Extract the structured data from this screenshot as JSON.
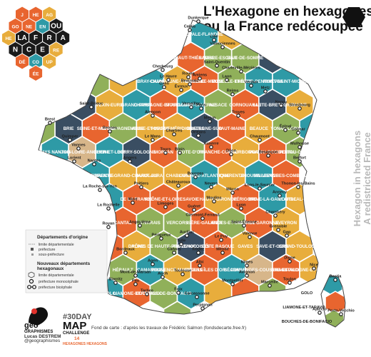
{
  "title": {
    "line1": "L'Hexagone en hexagones",
    "line2": "ou la France redécoupée"
  },
  "side_title": {
    "line1": "Hexagon in hexagons",
    "line2": "A redistricted France"
  },
  "colors": {
    "teal": "#2e9aa6",
    "orange": "#e8652f",
    "yellow": "#e8ad3c",
    "olive": "#90b05a",
    "tan": "#d7b68a",
    "navy": "#3a4e62",
    "border": "#ffffff",
    "title_hex": "#111111"
  },
  "logo": {
    "letters": [
      "J",
      "HE",
      "AG",
      "GO",
      "NE",
      "EN",
      "OU",
      "HE",
      "LA",
      "F",
      "R",
      "A",
      "N",
      "C",
      "E",
      "RE",
      "DÉ",
      "CO",
      "UP",
      "ÉE"
    ]
  },
  "regions": [
    {
      "name": "OPALE-FLANDRE",
      "color": "teal"
    },
    {
      "name": "OPALE-ARTOIS",
      "color": "yellow"
    },
    {
      "name": "HAINAUT-THIÉRACHE",
      "color": "orange"
    },
    {
      "name": "SAMBRE-ESCAUT",
      "color": "olive"
    },
    {
      "name": "BAIE-DE-SOMME",
      "color": "olive"
    },
    {
      "name": "PICARDIE-CENTRALE",
      "color": "navy"
    },
    {
      "name": "ARDENNES",
      "color": "olive"
    },
    {
      "name": "BESSIN-COTENTIN",
      "color": "yellow"
    },
    {
      "name": "BRAY-CAUX",
      "color": "teal"
    },
    {
      "name": "CHAMPAGNE-THÉRACHE",
      "color": "yellow"
    },
    {
      "name": "MOSELLE-MEUSE",
      "color": "orange"
    },
    {
      "name": "MOSELLE-ET-NIED",
      "color": "olive"
    },
    {
      "name": "TRÉGOR-PENTHIÈVRE",
      "color": "teal"
    },
    {
      "name": "MONT-SAINT-MICHEL",
      "color": "teal"
    },
    {
      "name": "ORNE",
      "color": "navy"
    },
    {
      "name": "VEXIN-EURE",
      "color": "yellow"
    },
    {
      "name": "GRAND-PARIS",
      "color": "teal"
    },
    {
      "name": "CHAMPAGNE-ET-ARGONNE",
      "color": "orange"
    },
    {
      "name": "MOSELLE-ET-SAVERNE",
      "color": "teal"
    },
    {
      "name": "ALSACE",
      "color": "olive"
    },
    {
      "name": "CORNOUAILLE",
      "color": "orange"
    },
    {
      "name": "HAUTE-BRETAGNE",
      "color": "navy"
    },
    {
      "name": "MAINE",
      "color": "yellow"
    },
    {
      "name": "EURE-ET-LOIR",
      "color": "olive"
    },
    {
      "name": "BRIE",
      "color": "navy"
    },
    {
      "name": "SEINE-ET-MARNE",
      "color": "orange"
    },
    {
      "name": "CHAMPAGNE-AUBE",
      "color": "olive"
    },
    {
      "name": "MEUSE-ET-MARNE",
      "color": "yellow"
    },
    {
      "name": "VOSGES-MÉRIDIONALES",
      "color": "yellow"
    },
    {
      "name": "BRETAGNE-SUD",
      "color": "navy"
    },
    {
      "name": "HAUT-MAINE",
      "color": "orange"
    },
    {
      "name": "BEAUCE",
      "color": "yellow"
    },
    {
      "name": "YONNE-LOING",
      "color": "olive"
    },
    {
      "name": "HAUTE-SAÔNE",
      "color": "teal"
    },
    {
      "name": "PAYS NANTAIS",
      "color": "teal"
    },
    {
      "name": "ANJOU-LOIRE-ANGEVINE",
      "color": "tan"
    },
    {
      "name": "CHER-ET-LOIR",
      "color": "teal"
    },
    {
      "name": "BERRY-SOLOGNE",
      "color": "navy"
    },
    {
      "name": "MORVAN",
      "color": "orange"
    },
    {
      "name": "CÔTE-D'OR",
      "color": "olive"
    },
    {
      "name": "FRANCHE-COMTÉ",
      "color": "orange"
    },
    {
      "name": "BOURBONNAIS",
      "color": "yellow"
    },
    {
      "name": "POITOU-OCCIDENTAL",
      "color": "orange"
    },
    {
      "name": "POITOU-ORIENTAL",
      "color": "olive"
    },
    {
      "name": "BERRY-MARCHE",
      "color": "teal"
    },
    {
      "name": "CHARENTE-GRAND-CHAROLAIS",
      "color": "yellow"
    },
    {
      "name": "HAUT-JURA",
      "color": "yellow"
    },
    {
      "name": "CHABLAIS",
      "color": "yellow"
    },
    {
      "name": "GIRONDE-ATLANTIQUE",
      "color": "teal"
    },
    {
      "name": "CHARENTE",
      "color": "yellow"
    },
    {
      "name": "LIMOUSIN-VIENNE",
      "color": "teal"
    },
    {
      "name": "MILLEVACHES-COMBRAILLES",
      "color": "orange"
    },
    {
      "name": "LIVRADOIS-FOREZ",
      "color": "teal"
    },
    {
      "name": "DE LA FRANCE",
      "color": "orange"
    },
    {
      "name": "RHÔNE-ET-LOIRE",
      "color": "orange"
    },
    {
      "name": "SAVOIE",
      "color": "orange"
    },
    {
      "name": "HAUTE-GIRONDE",
      "color": "yellow"
    },
    {
      "name": "PÉRIGORD",
      "color": "orange"
    },
    {
      "name": "BRIVE-LA-GAILLARDE",
      "color": "teal"
    },
    {
      "name": "PORTALAL-DU-MIDI",
      "color": "yellow"
    },
    {
      "name": "CANTAL",
      "color": "orange"
    },
    {
      "name": "VIVARAIS",
      "color": "olive"
    },
    {
      "name": "VERCORS",
      "color": "olive"
    },
    {
      "name": "ISÈRE-GALIBIER",
      "color": "orange"
    },
    {
      "name": "LANDES-ET-GIRONDE",
      "color": "olive"
    },
    {
      "name": "LOT-ET-GARONNE",
      "color": "orange"
    },
    {
      "name": "AVEYRON",
      "color": "yellow"
    },
    {
      "name": "CÉVENNES",
      "color": "orange"
    },
    {
      "name": "DRÔME",
      "color": "yellow"
    },
    {
      "name": "ALPES DE HAUTE-PROVENCE",
      "color": "olive"
    },
    {
      "name": "ALPES NIÇOISES",
      "color": "navy"
    },
    {
      "name": "CÔTE BASQUE",
      "color": "orange"
    },
    {
      "name": "GAVES",
      "color": "yellow"
    },
    {
      "name": "SAVE-ET-GERS",
      "color": "navy"
    },
    {
      "name": "GRAND-TOULOUSE",
      "color": "yellow"
    },
    {
      "name": "HÉRAULT",
      "color": "olive"
    },
    {
      "name": "CAMARGUE",
      "color": "teal"
    },
    {
      "name": "PROVENCE-MARSEILLE",
      "color": "yellow"
    },
    {
      "name": "ARGENS-ÎLES D'OR",
      "color": "orange"
    },
    {
      "name": "BÉARN",
      "color": "teal"
    },
    {
      "name": "COMMINGES-COUSERANS",
      "color": "tan"
    },
    {
      "name": "ORB-ET-AUDE",
      "color": "orange"
    },
    {
      "name": "CATALOGNE-ET-LANGUEDOC",
      "color": "yellow"
    },
    {
      "name": "GOLO",
      "color": "teal"
    },
    {
      "name": "LIAMONE-ET-TARAVO",
      "color": "orange"
    },
    {
      "name": "BOUCHES-DE-BONIFACIO",
      "color": "olive"
    }
  ],
  "cities": [
    "Dunkerque",
    "Calais",
    "Lille",
    "Valenciennes",
    "Cherbourg",
    "Le Havre",
    "Rouen",
    "Amiens",
    "Saint-Quentin",
    "Charleville-Mézières",
    "Laon",
    "Reims",
    "Caen",
    "Évreux",
    "Beauvais",
    "Metz",
    "Verdun",
    "Strasbourg",
    "Saint-Brieuc",
    "Brest",
    "Quimper",
    "Rennes",
    "Alençon",
    "Versailles",
    "Paris",
    "Melun",
    "Troyes",
    "Nancy",
    "Épinal",
    "Colmar",
    "Mulhouse",
    "Vannes",
    "Lorient",
    "Le Mans",
    "Chartres",
    "Orléans",
    "Auxerre",
    "Chaumont",
    "Belfort",
    "Nantes",
    "Angers",
    "Tours",
    "Blois",
    "Bourges",
    "Dijon",
    "Besançon",
    "La Roche-sur-Yon",
    "Poitiers",
    "Châteauroux",
    "Nevers",
    "Mâcon",
    "Lons-le-Saunier",
    "Thonon-les-Bains",
    "Annecy",
    "La Rochelle",
    "Niort",
    "Limoges",
    "Guéret",
    "Moulins",
    "Clermont-Ferrand",
    "Lyon",
    "Chambéry",
    "Royan",
    "Angoulême",
    "Saint-Étienne",
    "Grenoble",
    "Bordeaux",
    "Périgueux",
    "Tulle",
    "Aurillac",
    "Le Puy",
    "Valence",
    "Gap",
    "Mont-de-Marsan",
    "Agen",
    "Cahors",
    "Rodez",
    "Mende",
    "Nîmes",
    "Avignon",
    "Digne",
    "Nice",
    "Biarritz",
    "Pau",
    "Auch",
    "Toulouse",
    "Albi",
    "Montpellier",
    "Marseille",
    "Toulon",
    "Tarbes",
    "Foix",
    "Carcassonne",
    "Perpignan",
    "Ajaccio",
    "Bastia",
    "Porto-Vecchio"
  ],
  "legend": {
    "section1_title": "Départements d'origine",
    "section1_items": [
      "limite départementale",
      "préfecture",
      "sous-préfecture"
    ],
    "section2_title": "Nouveaux départements hexagonaux",
    "section2_items": [
      "limite départementale",
      "préfecture monocéphale",
      "préfecture bicéphale"
    ]
  },
  "branding": {
    "logo_word1": "géo",
    "logo_word2": "GRAPHISMES",
    "author": "Lucas DESTREM",
    "handle": "@geographismes",
    "challenge_tag": "#30DAY",
    "challenge_word1": "MAP",
    "challenge_word2": "CHALLENGE",
    "day": "14",
    "day_label": "HEXAGONES HEXAGONS"
  },
  "credit": "Fond de carte : d'après les travaux de Frédéric Salmon (fondsdecarte.free.fr)"
}
